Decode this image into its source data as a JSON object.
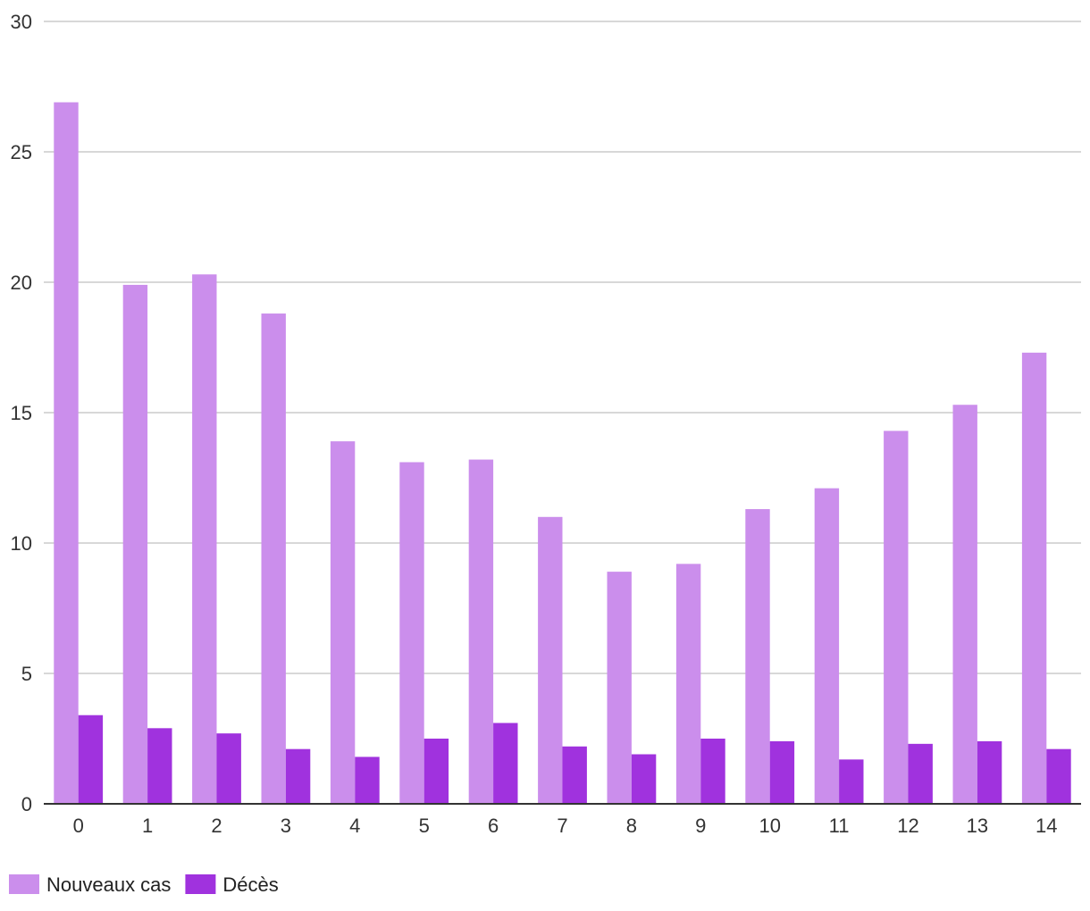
{
  "chart_data": {
    "type": "bar",
    "title": "",
    "xlabel": "",
    "ylabel": "",
    "ylim": [
      0,
      30
    ],
    "yticks": [
      0,
      5,
      10,
      15,
      20,
      25,
      30
    ],
    "grid": true,
    "legend_position": "bottom-left",
    "categories": [
      "0",
      "1",
      "2",
      "3",
      "4",
      "5",
      "6",
      "7",
      "8",
      "9",
      "10",
      "11",
      "12",
      "13",
      "14"
    ],
    "series": [
      {
        "name": "Nouveaux cas",
        "color": "#cb8eec",
        "values": [
          26.9,
          19.9,
          20.3,
          18.8,
          13.9,
          13.1,
          13.2,
          11.0,
          8.9,
          9.2,
          11.3,
          12.1,
          14.3,
          15.3,
          17.3
        ]
      },
      {
        "name": "Décès",
        "color": "#a032de",
        "values": [
          3.4,
          2.9,
          2.7,
          2.1,
          1.8,
          2.5,
          3.1,
          2.2,
          1.9,
          2.5,
          2.4,
          1.7,
          2.3,
          2.4,
          2.1
        ]
      }
    ]
  }
}
